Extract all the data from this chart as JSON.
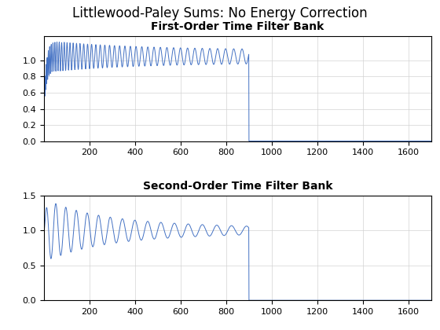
{
  "suptitle": "Littlewood-Paley Sums: No Energy Correction",
  "title1": "First-Order Time Filter Bank",
  "title2": "Second-Order Time Filter Bank",
  "line_color": "#4472c4",
  "xlim": [
    0,
    1700
  ],
  "ylim1": [
    0,
    1.3
  ],
  "ylim2": [
    0,
    1.5
  ],
  "xticks": [
    200,
    400,
    600,
    800,
    1000,
    1200,
    1400,
    1600
  ],
  "yticks1": [
    0,
    0.2,
    0.4,
    0.6,
    0.8,
    1.0
  ],
  "yticks2": [
    0,
    0.5,
    1.0,
    1.5
  ],
  "grid_color": "#d3d3d3",
  "bg_color": "#ffffff",
  "suptitle_fontsize": 12,
  "title_fontsize": 10,
  "cutoff": 900
}
